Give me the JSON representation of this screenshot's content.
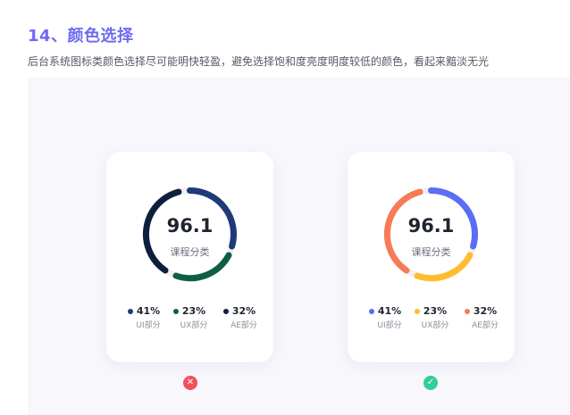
{
  "heading": "14、颜色选择",
  "subtitle": "后台系统图标类颜色选择尽可能明快轻盈，避免选择饱和度亮度明度较低的颜色，看起来黯淡无光",
  "cards": [
    {
      "value": "96.1",
      "label": "课程分类",
      "legend": [
        {
          "pct": "41%",
          "name": "UI部分",
          "color": "#1e3a78"
        },
        {
          "pct": "23%",
          "name": "UX部分",
          "color": "#0e5e43"
        },
        {
          "pct": "32%",
          "name": "AE部分",
          "color": "#0d1f3c"
        }
      ],
      "mark": "✕",
      "mark_color": "#f0515c"
    },
    {
      "value": "96.1",
      "label": "课程分类",
      "legend": [
        {
          "pct": "41%",
          "name": "UI部分",
          "color": "#5b6cf5"
        },
        {
          "pct": "23%",
          "name": "UX部分",
          "color": "#ffbc2d"
        },
        {
          "pct": "32%",
          "name": "AE部分",
          "color": "#f77b57"
        }
      ],
      "mark": "✓",
      "mark_color": "#2fcf95"
    }
  ]
}
